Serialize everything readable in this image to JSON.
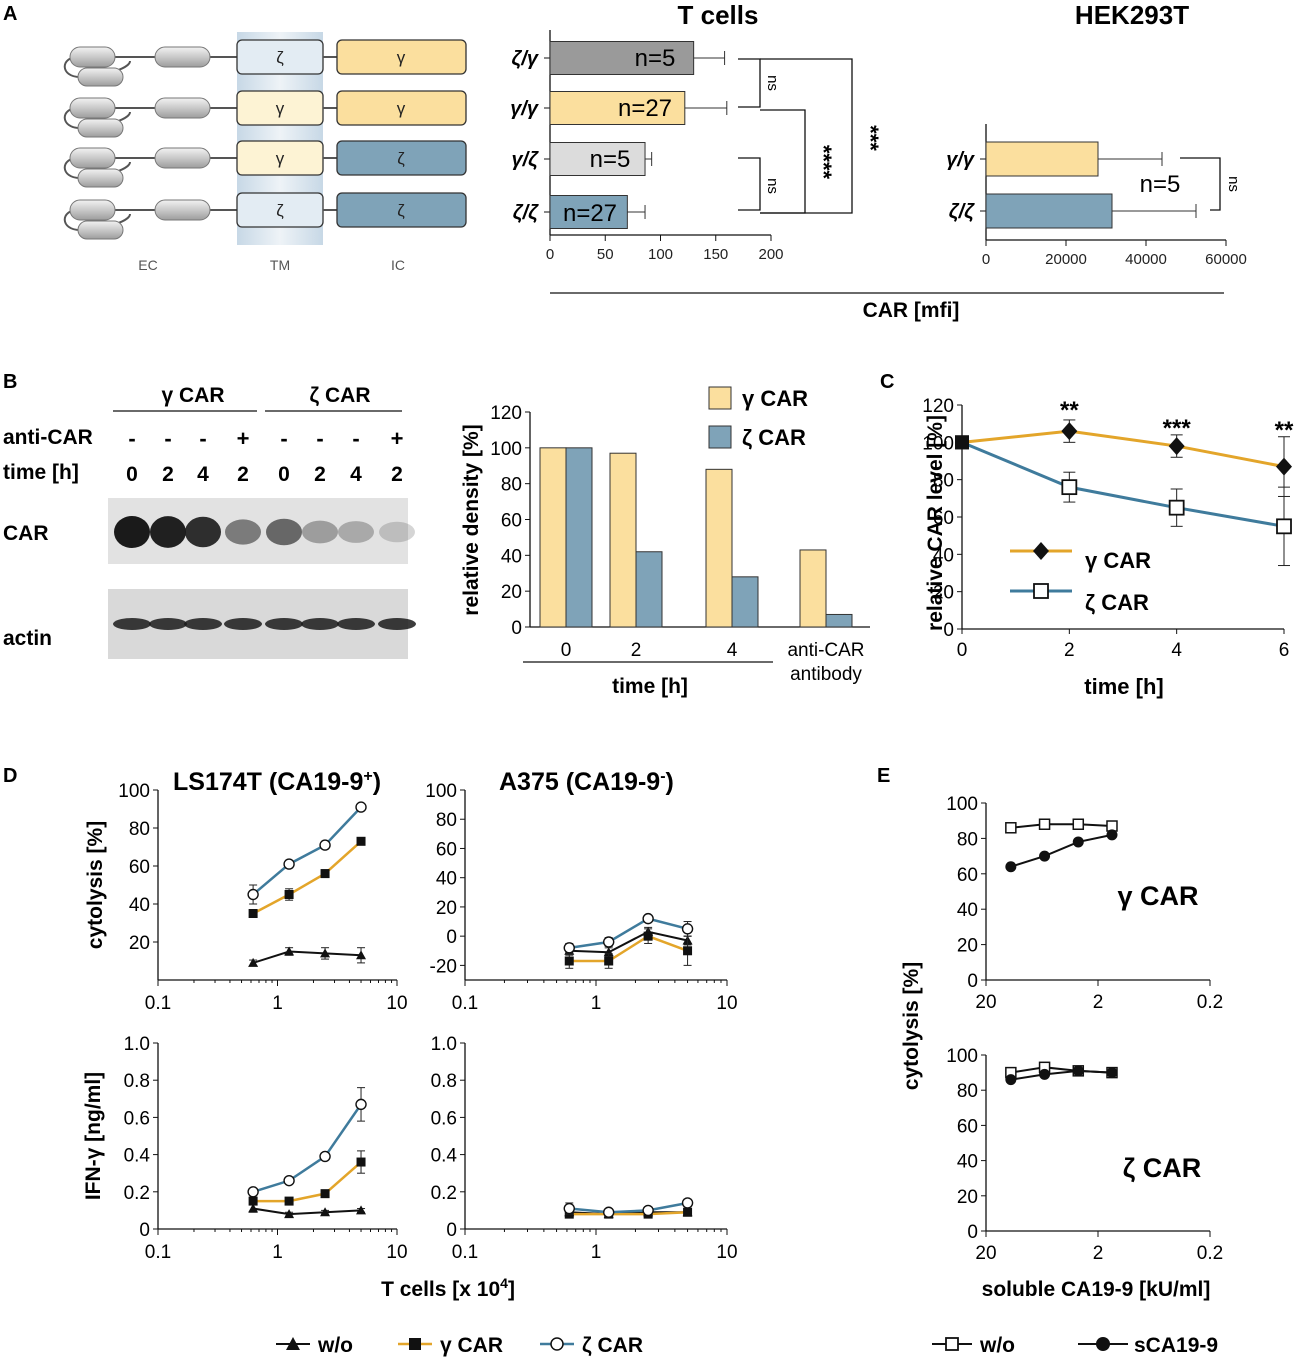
{
  "colors": {
    "gamma": "#f4c770",
    "gamma_fill": "#fbdf9e",
    "zeta": "#3f7b9c",
    "zeta_fill": "#7fa3b8",
    "gray_bar": "#9a9a9a",
    "light_bar": "#dcdcdc",
    "line_gamma": "#e3a52a",
    "line_zeta": "#3f7b9c",
    "tm_light": "#e3ecf3",
    "tm_yellow": "#fdf3d4",
    "dark": "#111111"
  },
  "panels": {
    "A": {
      "letter": "A",
      "schematic_labels": [
        "EC",
        "TM",
        "IC"
      ],
      "constructs": [
        {
          "tm": "ζ",
          "ic": "γ"
        },
        {
          "tm": "γ",
          "ic": "γ"
        },
        {
          "tm": "γ",
          "ic": "ζ"
        },
        {
          "tm": "ζ",
          "ic": "ζ"
        }
      ],
      "shared_xlabel": "CAR [mfi]",
      "sig": {
        "ns": "ns",
        "four": "****",
        "three": "***"
      }
    },
    "B": {
      "letter": "B",
      "groups": [
        "γ CAR",
        "ζ CAR"
      ],
      "row_labels": {
        "anti": "anti-CAR",
        "time": "time [h]",
        "car": "CAR",
        "actin": "actin"
      },
      "anti_values": [
        "-",
        "-",
        "-",
        "+",
        "-",
        "-",
        "-",
        "+"
      ],
      "time_values": [
        "0",
        "2",
        "4",
        "2",
        "0",
        "2",
        "4",
        "2"
      ]
    },
    "C": {
      "letter": "C"
    },
    "D": {
      "letter": "D",
      "titles": [
        "LS174T (CA19-9",
        "+",
        ")",
        "A375 (CA19-9",
        "-",
        ")"
      ],
      "xlabel": "T cells  [x 10",
      "xlabel_sup": "4",
      "xlabel_end": "]",
      "legend": [
        "w/o",
        "γ CAR",
        "ζ CAR"
      ]
    },
    "E": {
      "letter": "E",
      "legend": [
        "w/o",
        "sCA19-9"
      ]
    }
  },
  "chart_data": [
    {
      "id": "A_tcells",
      "type": "bar",
      "orientation": "horizontal",
      "title": "T cells",
      "categories": [
        "ζ/γ",
        "γ/γ",
        "γ/ζ",
        "ζ/ζ"
      ],
      "values": [
        130,
        122,
        86,
        70
      ],
      "errors": [
        28,
        38,
        6,
        16
      ],
      "annotations": [
        "n=5",
        "n=27",
        "n=5",
        "n=27"
      ],
      "xlim": [
        0,
        200
      ],
      "xticks": [
        "0",
        "50",
        "100",
        "150",
        "200"
      ]
    },
    {
      "id": "A_hek",
      "type": "bar",
      "orientation": "horizontal",
      "title": "HEK293T",
      "categories": [
        "γ/γ",
        "ζ/ζ"
      ],
      "values": [
        28000,
        31500
      ],
      "errors": [
        16000,
        21000
      ],
      "annotations": [
        "n=5"
      ],
      "xlim": [
        0,
        60000
      ],
      "xticks": [
        "0",
        "20000",
        "40000",
        "60000"
      ]
    },
    {
      "id": "B_density",
      "type": "bar",
      "ylabel": "relative  density [%]",
      "xlabel": "time [h]",
      "categories": [
        "0",
        "2",
        "4",
        "anti-CAR antibody"
      ],
      "category_lines": [
        [
          "0"
        ],
        [
          "2"
        ],
        [
          "4"
        ],
        [
          "anti-CAR",
          "antibody"
        ]
      ],
      "series": [
        {
          "name": "γ CAR",
          "values": [
            100,
            97,
            88,
            43
          ]
        },
        {
          "name": "ζ CAR",
          "values": [
            100,
            42,
            28,
            7
          ]
        }
      ],
      "ylim": [
        0,
        120
      ],
      "yticks": [
        "0",
        "20",
        "40",
        "60",
        "80",
        "100",
        "120"
      ]
    },
    {
      "id": "C_level",
      "type": "line",
      "ylabel": "relative CAR level [%]",
      "xlabel": "time [h]",
      "x": [
        0,
        2,
        4,
        6
      ],
      "series": [
        {
          "name": "γ CAR",
          "values": [
            100,
            106,
            98,
            87
          ],
          "errors": [
            0,
            6,
            6,
            16
          ]
        },
        {
          "name": "ζ CAR",
          "values": [
            100,
            76,
            65,
            55
          ],
          "errors": [
            0,
            8,
            10,
            21
          ]
        }
      ],
      "significance": [
        "**",
        "***",
        "**"
      ],
      "ylim": [
        0,
        120
      ],
      "xlim": [
        0,
        6
      ],
      "yticks": [
        "0",
        "20",
        "40",
        "60",
        "80",
        "100",
        "120"
      ],
      "xticks": [
        "0",
        "2",
        "4",
        "6"
      ]
    },
    {
      "id": "D_ls_cyto",
      "type": "line",
      "xscale": "log",
      "ylabel": "cytolysis [%]",
      "x": [
        0.625,
        1.25,
        2.5,
        5
      ],
      "series": [
        {
          "name": "w/o",
          "values": [
            9,
            15,
            14,
            13
          ],
          "errors": [
            1.5,
            2,
            3,
            4
          ]
        },
        {
          "name": "γ CAR",
          "values": [
            35,
            45,
            56,
            73
          ],
          "errors": [
            1.5,
            3,
            2,
            1.5
          ]
        },
        {
          "name": "ζ CAR",
          "values": [
            45,
            61,
            71,
            91
          ],
          "errors": [
            5,
            2,
            2,
            1.5
          ]
        }
      ],
      "ylim": [
        0,
        100
      ],
      "xlim": [
        0.1,
        10
      ],
      "yticks": [
        "20",
        "40",
        "60",
        "80",
        "100"
      ],
      "xticks": [
        "0.1",
        "1",
        "10"
      ]
    },
    {
      "id": "D_a375_cyto",
      "type": "line",
      "xscale": "log",
      "x": [
        0.625,
        1.25,
        2.5,
        5
      ],
      "series": [
        {
          "name": "w/o",
          "values": [
            -10,
            -11,
            3,
            -3
          ],
          "errors": [
            3,
            3,
            3,
            3
          ]
        },
        {
          "name": "γ CAR",
          "values": [
            -17,
            -17,
            0,
            -10
          ],
          "errors": [
            5,
            5,
            5,
            10
          ]
        },
        {
          "name": "ζ CAR",
          "values": [
            -8,
            -4,
            12,
            5
          ],
          "errors": [
            3,
            3,
            2,
            5
          ]
        }
      ],
      "ylim": [
        -30,
        100
      ],
      "xlim": [
        0.1,
        10
      ],
      "yticks": [
        "-20",
        "0",
        "20",
        "40",
        "60",
        "80",
        "100"
      ],
      "xticks": [
        "0.1",
        "1",
        "10"
      ]
    },
    {
      "id": "D_ls_ifn",
      "type": "line",
      "xscale": "log",
      "ylabel": "IFN-γ [ng/ml]",
      "x": [
        0.625,
        1.25,
        2.5,
        5
      ],
      "series": [
        {
          "name": "w/o",
          "values": [
            0.11,
            0.08,
            0.09,
            0.1
          ],
          "errors": [
            0.02,
            0.01,
            0.01,
            0.01
          ]
        },
        {
          "name": "γ CAR",
          "values": [
            0.15,
            0.15,
            0.19,
            0.36
          ],
          "errors": [
            0.02,
            0.01,
            0.01,
            0.06
          ]
        },
        {
          "name": "ζ CAR",
          "values": [
            0.2,
            0.26,
            0.39,
            0.67
          ],
          "errors": [
            0.01,
            0.01,
            0.01,
            0.09
          ]
        }
      ],
      "ylim": [
        0,
        1.0
      ],
      "xlim": [
        0.1,
        10
      ],
      "yticks": [
        "0",
        "0.2",
        "0.4",
        "0.6",
        "0.8",
        "1.0"
      ],
      "xticks": [
        "0.1",
        "1",
        "10"
      ]
    },
    {
      "id": "D_a375_ifn",
      "type": "line",
      "xscale": "log",
      "x": [
        0.625,
        1.25,
        2.5,
        5
      ],
      "series": [
        {
          "name": "w/o",
          "values": [
            0.09,
            0.08,
            0.09,
            0.09
          ],
          "errors": [
            0.01,
            0.01,
            0.01,
            0.01
          ]
        },
        {
          "name": "γ CAR",
          "values": [
            0.08,
            0.08,
            0.08,
            0.09
          ],
          "errors": [
            0.02,
            0.01,
            0.01,
            0.02
          ]
        },
        {
          "name": "ζ CAR",
          "values": [
            0.11,
            0.09,
            0.1,
            0.14
          ],
          "errors": [
            0.03,
            0.01,
            0.01,
            0.02
          ]
        }
      ],
      "ylim": [
        0,
        1.0
      ],
      "xlim": [
        0.1,
        10
      ],
      "yticks": [
        "0",
        "0.2",
        "0.4",
        "0.6",
        "0.8",
        "1.0"
      ],
      "xticks": [
        "0.1",
        "1",
        "10"
      ]
    },
    {
      "id": "E_gamma",
      "type": "line",
      "xscale": "log-reversed",
      "title": "γ CAR",
      "x": [
        12,
        6,
        3,
        1.5
      ],
      "series": [
        {
          "name": "w/o",
          "values": [
            86,
            88,
            88,
            87
          ]
        },
        {
          "name": "sCA19-9",
          "values": [
            64,
            70,
            78,
            82
          ]
        }
      ],
      "ylim": [
        0,
        100
      ],
      "xlim": [
        20,
        0.2
      ],
      "yticks": [
        "0",
        "20",
        "40",
        "60",
        "80",
        "100"
      ],
      "xticks": [
        "20",
        "2",
        "0.2"
      ]
    },
    {
      "id": "E_zeta",
      "type": "line",
      "xscale": "log-reversed",
      "title": "ζ CAR",
      "ylabel": "cytolysis [%]",
      "xlabel": "soluble CA19-9 [kU/ml]",
      "x": [
        12,
        6,
        3,
        1.5
      ],
      "series": [
        {
          "name": "w/o",
          "values": [
            90,
            93,
            91,
            90
          ]
        },
        {
          "name": "sCA19-9",
          "values": [
            86,
            89,
            91,
            90
          ]
        }
      ],
      "ylim": [
        0,
        100
      ],
      "xlim": [
        20,
        0.2
      ],
      "yticks": [
        "0",
        "20",
        "40",
        "60",
        "80",
        "100"
      ],
      "xticks": [
        "20",
        "2",
        "0.2"
      ]
    }
  ]
}
